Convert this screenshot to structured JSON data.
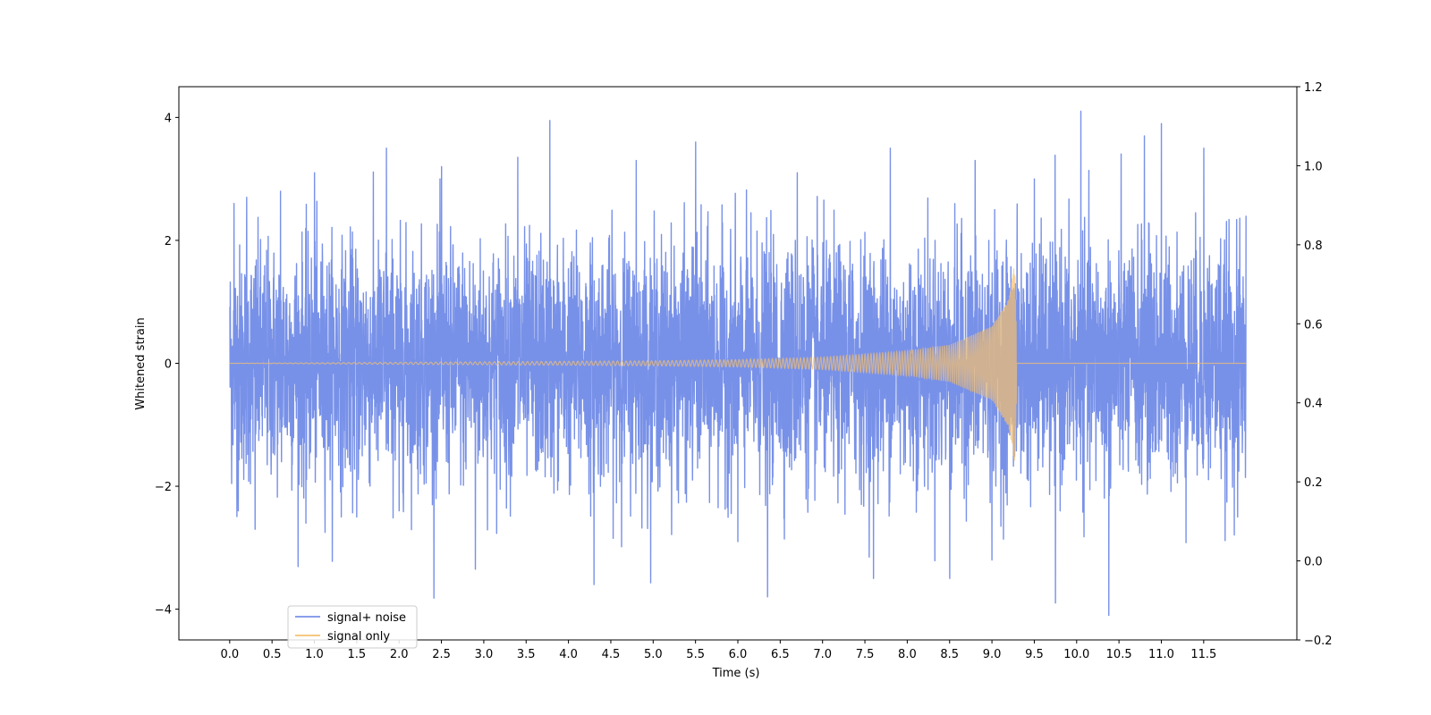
{
  "chart_data": {
    "type": "line",
    "title": "",
    "xlabel": "Time (s)",
    "ylabel": "Whitened strain",
    "xlim": [
      -0.6,
      12.6
    ],
    "ylim": [
      -4.5,
      4.5
    ],
    "y2lim": [
      -0.2,
      1.2
    ],
    "x_ticks": [
      0.0,
      0.5,
      1.0,
      1.5,
      2.0,
      2.5,
      3.0,
      3.5,
      4.0,
      4.5,
      5.0,
      5.5,
      6.0,
      6.5,
      7.0,
      7.5,
      8.0,
      8.5,
      9.0,
      9.5,
      10.0,
      10.5,
      11.0,
      11.5
    ],
    "x_tick_labels": [
      "0.0",
      "0.5",
      "1.0",
      "1.5",
      "2.0",
      "2.5",
      "3.0",
      "3.5",
      "4.0",
      "4.5",
      "5.0",
      "5.5",
      "6.0",
      "6.5",
      "7.0",
      "7.5",
      "8.0",
      "8.5",
      "9.0",
      "9.5",
      "10.0",
      "10.5",
      "11.0",
      "11.5"
    ],
    "y_ticks": [
      4,
      2,
      0,
      -2,
      -4
    ],
    "y_tick_labels": [
      "4",
      "2",
      "0",
      "−2",
      "−4"
    ],
    "y2_ticks": [
      1.2,
      1.0,
      0.8,
      0.6,
      0.4,
      0.2,
      0.0,
      -0.2
    ],
    "y2_tick_labels": [
      "1.2",
      "1.0",
      "0.8",
      "0.6",
      "0.4",
      "0.2",
      "0.0",
      "−0.2"
    ],
    "grid": false,
    "legend_position": "lower-left",
    "series": [
      {
        "name": "signal+ noise",
        "color": "#7891e8",
        "style": "dense white-noise trace, values mostly within ±2.5 with peaks near ±4",
        "x_range": [
          0.0,
          12.0
        ],
        "points": [
          [
            0.0,
            0.9
          ],
          [
            0.02,
            -1.1
          ],
          [
            0.05,
            2.6
          ],
          [
            0.1,
            -2.4
          ],
          [
            0.2,
            2.7
          ],
          [
            0.3,
            -2.7
          ],
          [
            0.6,
            2.8
          ],
          [
            0.9,
            -2.6
          ],
          [
            1.0,
            3.1
          ],
          [
            1.5,
            -2.5
          ],
          [
            1.85,
            3.5
          ],
          [
            2.0,
            -2.4
          ],
          [
            2.5,
            3.2
          ],
          [
            2.9,
            -3.35
          ],
          [
            3.4,
            3.35
          ],
          [
            3.78,
            3.95
          ],
          [
            4.3,
            -3.6
          ],
          [
            4.8,
            3.3
          ],
          [
            5.5,
            3.6
          ],
          [
            6.0,
            -2.9
          ],
          [
            6.35,
            -3.8
          ],
          [
            6.7,
            3.1
          ],
          [
            7.6,
            -3.5
          ],
          [
            7.8,
            3.5
          ],
          [
            8.5,
            -3.5
          ],
          [
            8.8,
            3.3
          ],
          [
            9.0,
            -3.2
          ],
          [
            9.5,
            3.0
          ],
          [
            9.75,
            -3.9
          ],
          [
            10.05,
            4.1
          ],
          [
            10.38,
            -4.1
          ],
          [
            10.8,
            3.7
          ],
          [
            11.0,
            3.9
          ],
          [
            11.5,
            3.5
          ],
          [
            11.9,
            -2.5
          ],
          [
            12.0,
            2.4
          ]
        ]
      },
      {
        "name": "signal only",
        "color": "#f5c06f",
        "style": "chirp with exponentially growing amplitude, merger near 9.27 s then flat zero",
        "x_range": [
          0.0,
          12.0
        ],
        "merger_time": 9.27,
        "peak_amplitude": 1.65,
        "envelope_points": [
          [
            0.0,
            0.0
          ],
          [
            5.0,
            0.04
          ],
          [
            6.0,
            0.06
          ],
          [
            7.0,
            0.1
          ],
          [
            8.0,
            0.2
          ],
          [
            8.5,
            0.3
          ],
          [
            9.0,
            0.6
          ],
          [
            9.2,
            1.05
          ],
          [
            9.27,
            1.65
          ],
          [
            9.3,
            0.0
          ],
          [
            12.0,
            0.0
          ]
        ]
      }
    ]
  }
}
